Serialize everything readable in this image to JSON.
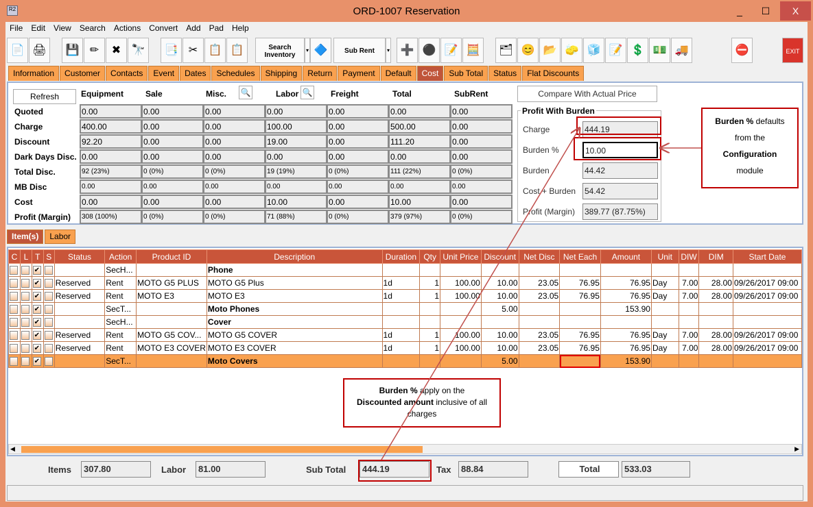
{
  "window": {
    "title": "ORD-1007 Reservation",
    "icon": "R2",
    "minimize": "_",
    "maximize": "☐",
    "close": "X"
  },
  "menu": [
    "File",
    "Edit",
    "View",
    "Search",
    "Actions",
    "Convert",
    "Add",
    "Pad",
    "Help"
  ],
  "toolbar": {
    "search_inventory": "Search Inventory",
    "sub_rent": "Sub Rent",
    "exit": "EXIT"
  },
  "tabs": [
    "Information",
    "Customer",
    "Contacts",
    "Event",
    "Dates",
    "Schedules",
    "Shipping",
    "Return",
    "Payment",
    "Default",
    "Cost",
    "Sub Total",
    "Status",
    "Flat Discounts"
  ],
  "active_tab": "Cost",
  "cost": {
    "refresh": "Refresh",
    "compare": "Compare With Actual Price",
    "columns": [
      "Equipment",
      "Sale",
      "Misc.",
      "Labor",
      "Freight",
      "Total",
      "SubRent"
    ],
    "rows": [
      {
        "label": "Quoted",
        "values": [
          "0.00",
          "0.00",
          "0.00",
          "0.00",
          "0.00",
          "0.00",
          "0.00"
        ]
      },
      {
        "label": "Charge",
        "values": [
          "400.00",
          "0.00",
          "0.00",
          "100.00",
          "0.00",
          "500.00",
          "0.00"
        ]
      },
      {
        "label": "Discount",
        "values": [
          "92.20",
          "0.00",
          "0.00",
          "19.00",
          "0.00",
          "111.20",
          "0.00"
        ]
      },
      {
        "label": "Dark Days Disc.",
        "values": [
          "0.00",
          "0.00",
          "0.00",
          "0.00",
          "0.00",
          "0.00",
          "0.00"
        ]
      },
      {
        "label": "Total Disc.",
        "values": [
          "92 (23%)",
          "0 (0%)",
          "0 (0%)",
          "19 (19%)",
          "0 (0%)",
          "111 (22%)",
          "0 (0%)"
        ]
      },
      {
        "label": "MB Disc",
        "values": [
          "0.00",
          "0.00",
          "0.00",
          "0.00",
          "0.00",
          "0.00",
          "0.00"
        ]
      },
      {
        "label": "Cost",
        "values": [
          "0.00",
          "0.00",
          "0.00",
          "10.00",
          "0.00",
          "10.00",
          "0.00"
        ]
      },
      {
        "label": "Profit (Margin)",
        "values": [
          "308 (100%)",
          "0 (0%)",
          "0 (0%)",
          "71 (88%)",
          "0 (0%)",
          "379 (97%)",
          "0 (0%)"
        ]
      }
    ],
    "burden": {
      "title": "Profit With Burden",
      "charge_label": "Charge",
      "charge": "444.19",
      "burden_pct_label": "Burden %",
      "burden_pct": "10.00",
      "burden_label": "Burden",
      "burden": "44.42",
      "cost_burden_label": "Cost + Burden",
      "cost_burden": "54.42",
      "profit_label": "Profit (Margin)",
      "profit": "389.77 (87.75%)"
    }
  },
  "annotations": {
    "note1": {
      "b1": "Burden %",
      "t1": " defaults",
      "t2": "from the",
      "b2": "Configuration",
      "t3": "module"
    },
    "note2": {
      "b1": "Burden %",
      "t1": " apply on the",
      "b2": "Discounted amount",
      "t2": " inclusive of all charges"
    }
  },
  "subtabs": [
    "Item(s)",
    "Labor"
  ],
  "grid": {
    "columns": [
      "C",
      "L",
      "T",
      "S",
      "Status",
      "Action",
      "Product ID",
      "Description",
      "Duration",
      "Qty",
      "Unit Price",
      "Discount",
      "Net Disc",
      "Net Each",
      "Amount",
      "Unit",
      "DIW",
      "DIM",
      "Start Date"
    ],
    "rows": [
      {
        "t": true,
        "status": "",
        "action": "SecH...",
        "pid": "",
        "desc": "Phone",
        "bold": true,
        "dur": "",
        "qty": "",
        "up": "",
        "disc": "",
        "nd": "",
        "ne": "",
        "amt": "",
        "unit": "",
        "diw": "",
        "dim": "",
        "start": ""
      },
      {
        "t": true,
        "status": "Reserved",
        "action": "Rent",
        "pid": "MOTO G5 PLUS",
        "desc": "MOTO G5 Plus",
        "dur": "1d",
        "qty": "1",
        "up": "100.00",
        "disc": "10.00",
        "nd": "23.05",
        "ne": "76.95",
        "amt": "76.95",
        "unit": "Day",
        "diw": "7.00",
        "dim": "28.00",
        "start": "09/26/2017 09:00"
      },
      {
        "t": true,
        "status": "Reserved",
        "action": "Rent",
        "pid": "MOTO E3",
        "desc": "MOTO E3",
        "dur": "1d",
        "qty": "1",
        "up": "100.00",
        "disc": "10.00",
        "nd": "23.05",
        "ne": "76.95",
        "amt": "76.95",
        "unit": "Day",
        "diw": "7.00",
        "dim": "28.00",
        "start": "09/26/2017 09:00"
      },
      {
        "t": true,
        "status": "",
        "action": "SecT...",
        "pid": "",
        "desc": "Moto Phones",
        "bold": true,
        "dur": "",
        "qty": "",
        "up": "",
        "disc": "5.00",
        "nd": "",
        "ne": "",
        "amt": "153.90",
        "unit": "",
        "diw": "",
        "dim": "",
        "start": ""
      },
      {
        "t": true,
        "status": "",
        "action": "SecH...",
        "pid": "",
        "desc": "Cover",
        "bold": true,
        "dur": "",
        "qty": "",
        "up": "",
        "disc": "",
        "nd": "",
        "ne": "",
        "amt": "",
        "unit": "",
        "diw": "",
        "dim": "",
        "start": ""
      },
      {
        "t": true,
        "status": "Reserved",
        "action": "Rent",
        "pid": "MOTO G5 COV...",
        "desc": "MOTO G5 COVER",
        "dur": "1d",
        "qty": "1",
        "up": "100.00",
        "disc": "10.00",
        "nd": "23.05",
        "ne": "76.95",
        "amt": "76.95",
        "unit": "Day",
        "diw": "7.00",
        "dim": "28.00",
        "start": "09/26/2017 09:00"
      },
      {
        "t": true,
        "status": "Reserved",
        "action": "Rent",
        "pid": "MOTO E3 COVER",
        "desc": "MOTO E3 COVER",
        "dur": "1d",
        "qty": "1",
        "up": "100.00",
        "disc": "10.00",
        "nd": "23.05",
        "ne": "76.95",
        "amt": "76.95",
        "unit": "Day",
        "diw": "7.00",
        "dim": "28.00",
        "start": "09/26/2017 09:00"
      },
      {
        "t": true,
        "selected": true,
        "status": "",
        "action": "SecT...",
        "pid": "",
        "desc": "Moto Covers",
        "bold": true,
        "dur": "",
        "qty": "",
        "up": "",
        "disc": "5.00",
        "nd": "",
        "ne": "",
        "amt": "153.90",
        "unit": "",
        "diw": "",
        "dim": "",
        "start": ""
      }
    ]
  },
  "totals": {
    "items_label": "Items",
    "items": "307.80",
    "labor_label": "Labor",
    "labor": "81.00",
    "subtotal_label": "Sub Total",
    "subtotal": "444.19",
    "tax_label": "Tax",
    "tax": "88.84",
    "total_label": "Total",
    "total": "533.03"
  },
  "colors": {
    "accent": "#F9A14F",
    "header": "#C9553A",
    "frame": "#E8916A",
    "annotation": "#C00000"
  }
}
